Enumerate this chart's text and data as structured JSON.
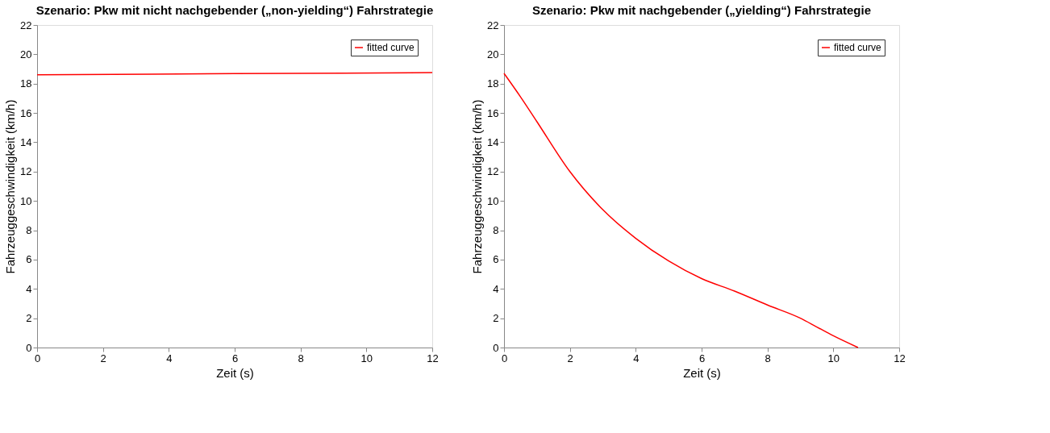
{
  "chart_data": [
    {
      "type": "line",
      "title": "Szenario: Pkw mit nicht nachgebender („non-yielding“) Fahrstrategie",
      "xlabel": "Zeit (s)",
      "ylabel": "Fahrzeuggeschwindigkeit (km/h)",
      "x": [
        0,
        6,
        12
      ],
      "series": [
        {
          "name": "fitted curve",
          "color": "#ff0000",
          "values": [
            18.6,
            18.68,
            18.75
          ]
        }
      ],
      "xlim": [
        0,
        12
      ],
      "ylim": [
        0,
        22
      ],
      "xticks": [
        0,
        2,
        4,
        6,
        8,
        10,
        12
      ],
      "yticks": [
        0,
        2,
        4,
        6,
        8,
        10,
        12,
        14,
        16,
        18,
        20,
        22
      ],
      "grid": false,
      "legend": "top right"
    },
    {
      "type": "line",
      "title": "Szenario: Pkw mit nachgebender („yielding“) Fahrstrategie",
      "xlabel": "Zeit (s)",
      "ylabel": "Fahrzeuggeschwindigkeit (km/h)",
      "x": [
        0,
        0.5,
        1,
        2,
        3,
        4,
        5,
        6,
        7,
        8,
        9,
        9.5,
        10,
        10.75
      ],
      "series": [
        {
          "name": "fitted curve",
          "color": "#ff0000",
          "values": [
            18.7,
            17.1,
            15.4,
            12.0,
            9.4,
            7.45,
            5.9,
            4.7,
            3.85,
            2.9,
            2.0,
            1.4,
            0.8,
            0
          ]
        }
      ],
      "xlim": [
        0,
        12
      ],
      "ylim": [
        0,
        22
      ],
      "xticks": [
        0,
        2,
        4,
        6,
        8,
        10,
        12
      ],
      "yticks": [
        0,
        2,
        4,
        6,
        8,
        10,
        12,
        14,
        16,
        18,
        20,
        22
      ],
      "grid": false,
      "legend": "top right"
    }
  ]
}
